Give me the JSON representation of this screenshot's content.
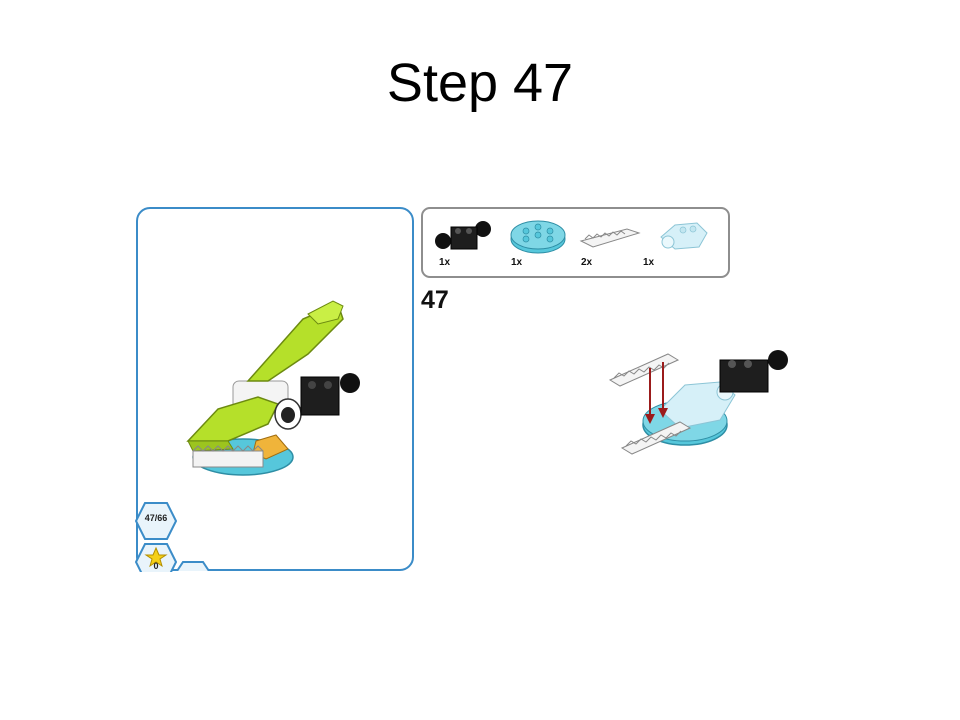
{
  "slide": {
    "title": "Step 47"
  },
  "instruction": {
    "step_number": "47",
    "parts": [
      {
        "name": "black-brick-with-ball",
        "qty": "1x"
      },
      {
        "name": "azure-round-plate",
        "qty": "1x"
      },
      {
        "name": "white-rack-tile",
        "qty": "2x"
      },
      {
        "name": "trans-light-blue-bracket",
        "qty": "1x"
      }
    ],
    "progress": {
      "label": "47/66",
      "current": 47,
      "total": 66
    },
    "stars": {
      "count": "0"
    }
  },
  "colors": {
    "panel_border": "#3b8cc8",
    "lime": "#b5e02a",
    "azure": "#56c7db",
    "black_brick": "#1e1e1e",
    "trans_light_blue": "#bfe6f2",
    "arrow_red": "#9b1b1b"
  }
}
